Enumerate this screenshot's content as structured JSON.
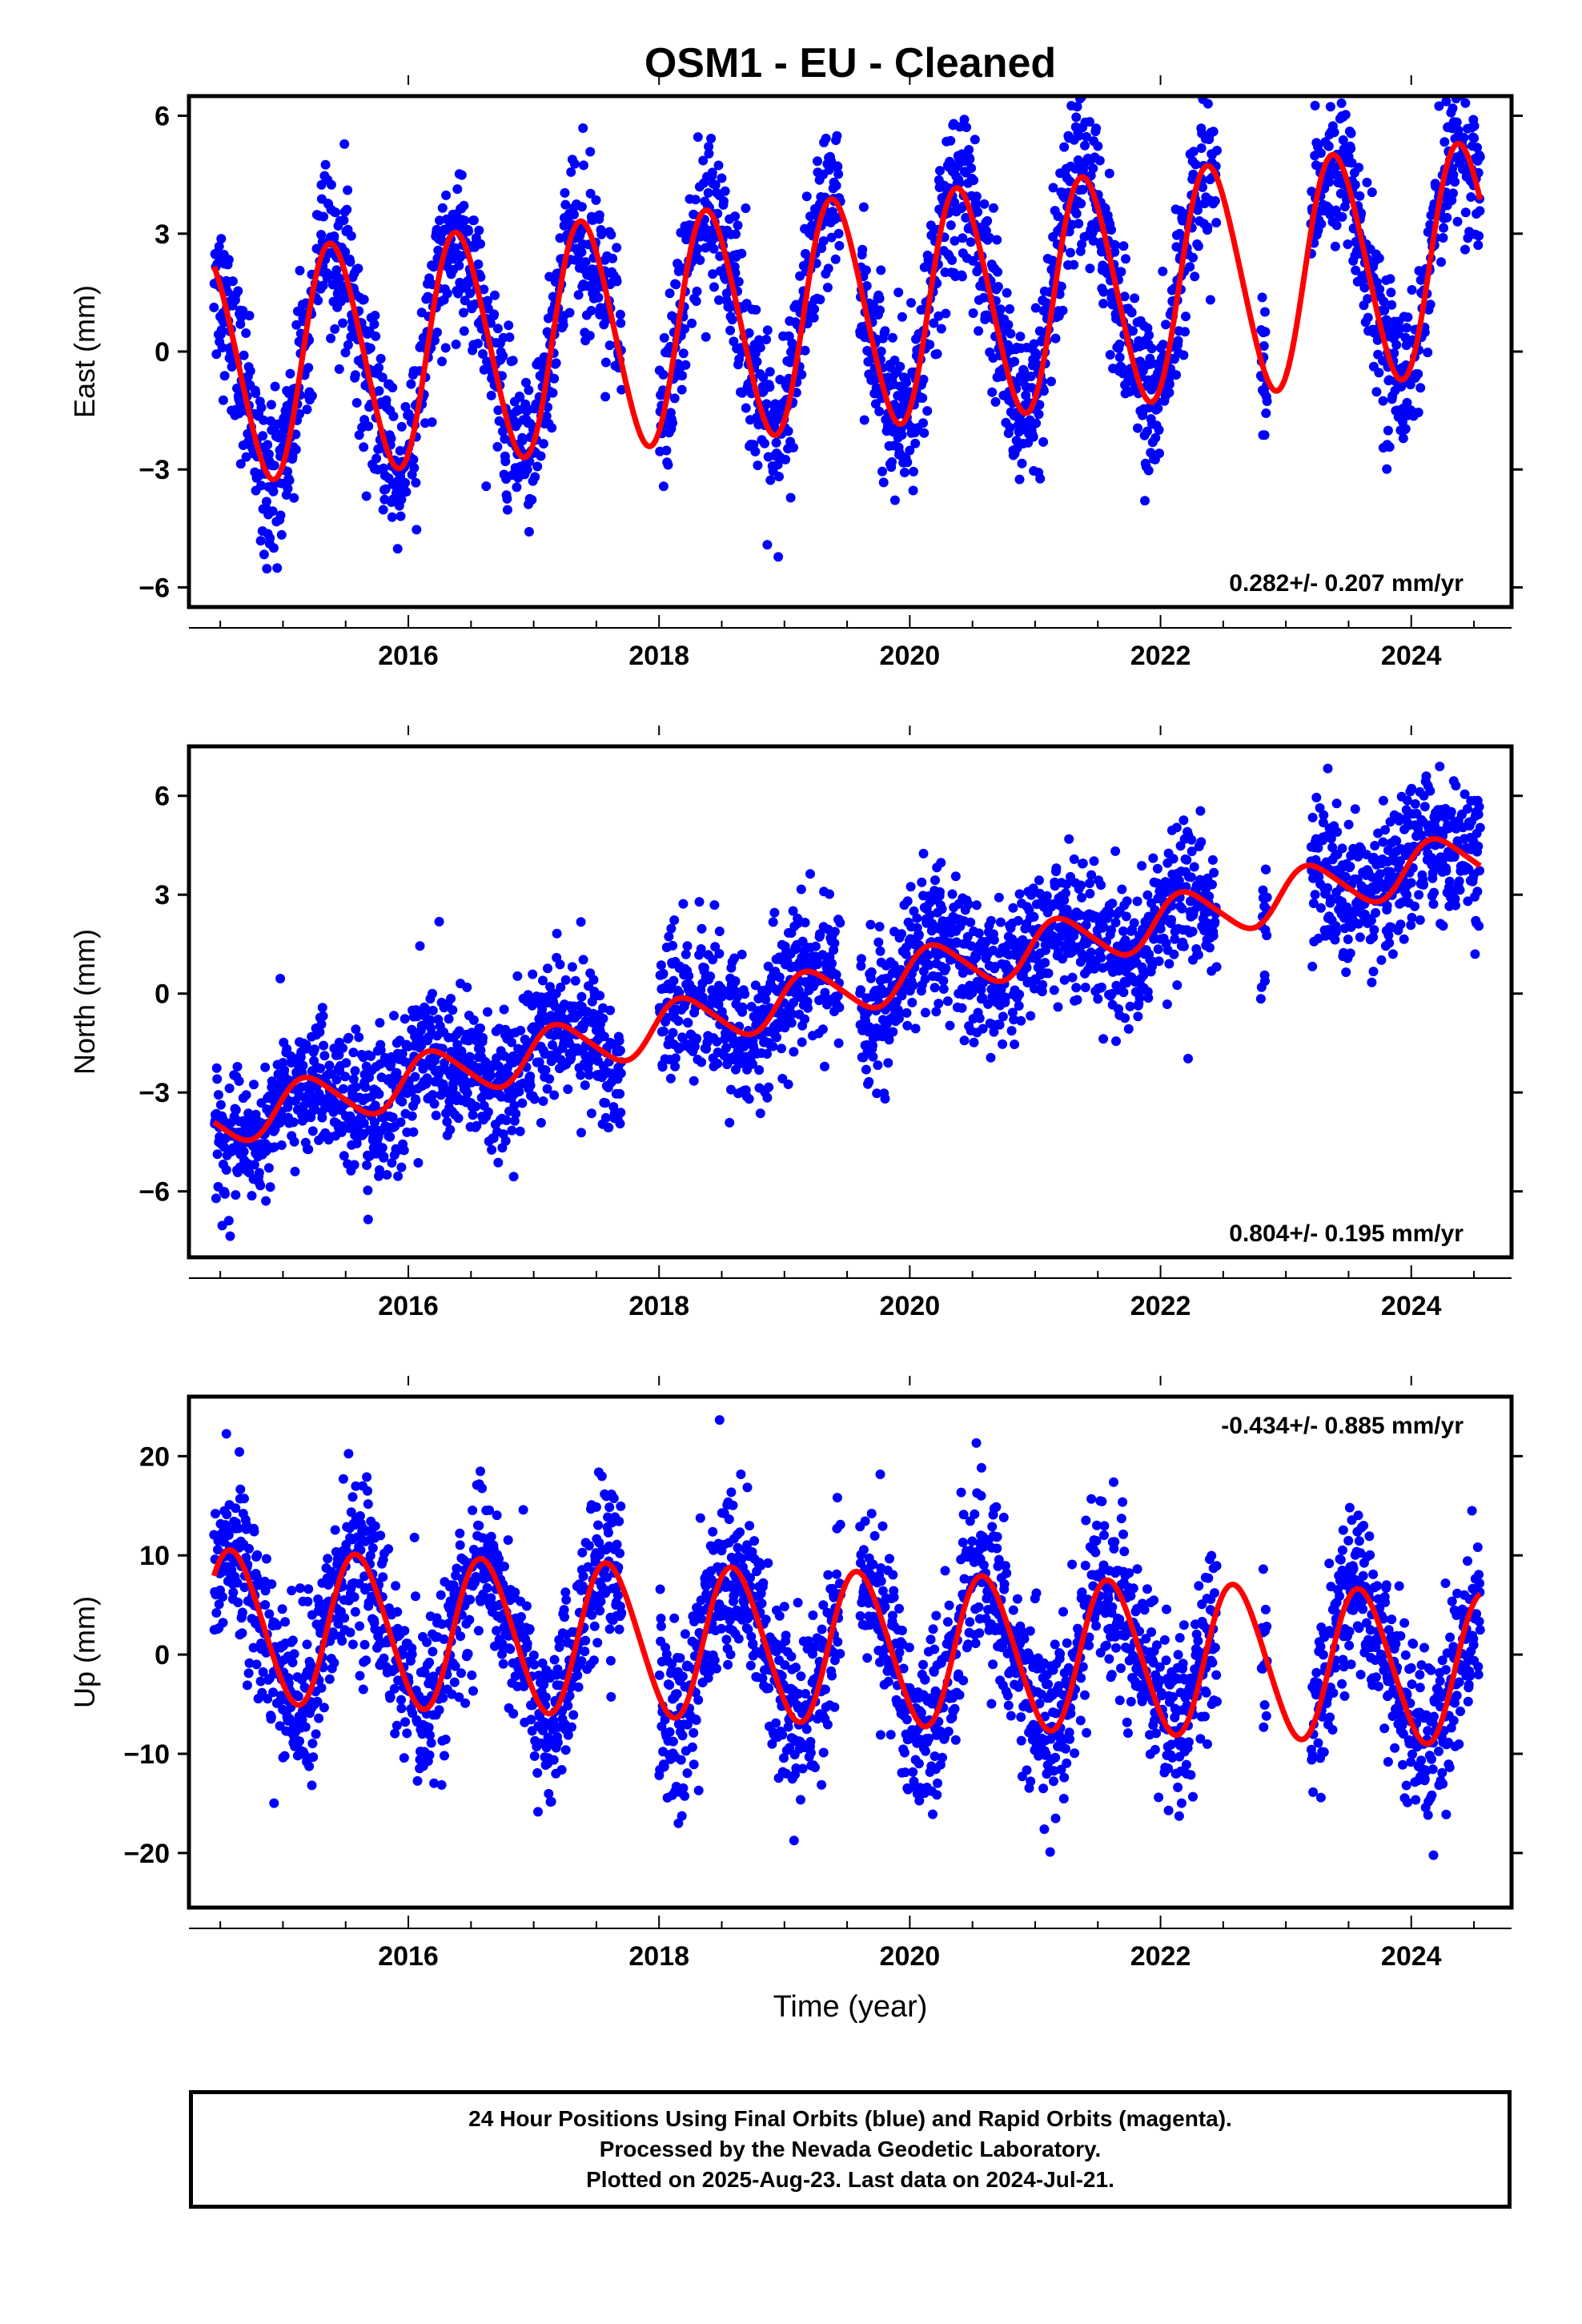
{
  "chart_data": [
    {
      "type": "scatter",
      "title": "OSM1  - EU - Cleaned",
      "ylabel": "East (mm)",
      "xlabel": "",
      "xlim": [
        2014.25,
        2024.8
      ],
      "ylim": [
        -6.5,
        6.5
      ],
      "x_ticks": [
        2016,
        2018,
        2020,
        2022,
        2024
      ],
      "x_tick_labels": [
        "2016",
        "2018",
        "2020",
        "2022",
        "2024"
      ],
      "y_ticks": [
        -6,
        -3,
        0,
        3,
        6
      ],
      "y_tick_labels": [
        "−6",
        "−3",
        "0",
        "3",
        "6"
      ],
      "annotation": "0.282+/- 0.207 mm/yr",
      "annotation_position": "bottom-right",
      "grid": false,
      "series": [
        {
          "name": "",
          "kind": "points",
          "color": "#0000ff"
        },
        {
          "name": "",
          "kind": "fit",
          "color": "#ff0000"
        }
      ],
      "model": {
        "offset": -0.45,
        "rate_mm_per_yr": 0.282,
        "annual_amp": 2.9,
        "annual_phase": 2015.15,
        "semiannual_amp": 0.25
      },
      "data_start": 2014.45,
      "data_end": 2024.55,
      "gaps": [
        [
          2017.7,
          2018.0
        ],
        [
          2019.45,
          2019.6
        ],
        [
          2022.45,
          2022.8
        ],
        [
          2022.85,
          2023.2
        ]
      ],
      "noise_mm": 1.0
    },
    {
      "type": "scatter",
      "title": "",
      "ylabel": "North (mm)",
      "xlabel": "",
      "xlim": [
        2014.25,
        2024.8
      ],
      "ylim": [
        -8,
        7.5
      ],
      "x_ticks": [
        2016,
        2018,
        2020,
        2022,
        2024
      ],
      "x_tick_labels": [
        "2016",
        "2018",
        "2020",
        "2022",
        "2024"
      ],
      "y_ticks": [
        -6,
        -3,
        0,
        3,
        6
      ],
      "y_tick_labels": [
        "−6",
        "−3",
        "0",
        "3",
        "6"
      ],
      "annotation": "0.804+/- 0.195 mm/yr",
      "annotation_position": "bottom-right",
      "grid": false,
      "series": [
        {
          "name": "",
          "kind": "points",
          "color": "#0000ff"
        },
        {
          "name": "",
          "kind": "fit",
          "color": "#ff0000"
        }
      ],
      "model": {
        "offset": -3.9,
        "rate_mm_per_yr": 0.804,
        "annual_amp": 0.75,
        "annual_phase": 2014.95,
        "semiannual_amp": 0.1
      },
      "data_start": 2014.45,
      "data_end": 2024.55,
      "gaps": [
        [
          2017.7,
          2018.0
        ],
        [
          2019.45,
          2019.6
        ],
        [
          2022.45,
          2022.8
        ],
        [
          2022.85,
          2023.2
        ]
      ],
      "noise_mm": 1.05
    },
    {
      "type": "scatter",
      "title": "",
      "ylabel": "Up (mm)",
      "xlabel": "Time (year)",
      "xlim": [
        2014.25,
        2024.8
      ],
      "ylim": [
        -25.5,
        26
      ],
      "x_ticks": [
        2016,
        2018,
        2020,
        2022,
        2024
      ],
      "x_tick_labels": [
        "2016",
        "2018",
        "2020",
        "2022",
        "2024"
      ],
      "y_ticks": [
        -20,
        -10,
        0,
        10,
        20
      ],
      "y_tick_labels": [
        "−20",
        "−10",
        "0",
        "10",
        "20"
      ],
      "annotation": "-0.434+/- 0.885 mm/yr",
      "annotation_position": "top-right",
      "grid": false,
      "series": [
        {
          "name": "",
          "kind": "points",
          "color": "#0000ff"
        },
        {
          "name": "",
          "kind": "fit",
          "color": "#ff0000"
        }
      ],
      "model": {
        "offset": 2.9,
        "rate_mm_per_yr": -0.434,
        "annual_amp": 7.6,
        "annual_phase": 2014.35,
        "semiannual_amp": 0.6
      },
      "data_start": 2014.45,
      "data_end": 2024.55,
      "gaps": [
        [
          2017.7,
          2018.0
        ],
        [
          2019.45,
          2019.6
        ],
        [
          2022.45,
          2022.8
        ],
        [
          2022.85,
          2023.2
        ]
      ],
      "noise_mm": 4.3
    }
  ],
  "footer": {
    "line1": "24 Hour Positions Using Final Orbits (blue) and Rapid Orbits (magenta).",
    "line2": "Processed by the Nevada Geodetic Laboratory.",
    "line3": "Plotted on 2025-Aug-23. Last data on 2024-Jul-21."
  },
  "colors": {
    "points": "#0000ff",
    "fit": "#ff0000",
    "axis": "#000000"
  }
}
